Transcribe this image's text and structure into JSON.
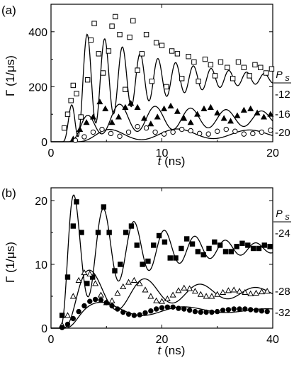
{
  "chart_data": [
    {
      "panel": "(a)",
      "type": "line",
      "xlabel": "t (ns)",
      "xlabel_var": "t",
      "xlabel_unit": " (ns)",
      "ylabel": "Γ (1/μs)",
      "xlim": [
        0,
        20
      ],
      "ylim": [
        0,
        500
      ],
      "xticks": [
        0,
        10,
        20
      ],
      "yticks": [
        0,
        200,
        400
      ],
      "legend_header": "P_S",
      "legend_header_main": "P",
      "legend_header_sub": "S",
      "series": [
        {
          "label": "-12",
          "marker": "open-square",
          "line": {
            "offset": 230,
            "amp0": 250,
            "tau": 7,
            "period": 1.6,
            "t0": 1.0,
            "rise": 1.3,
            "phase": 0.6
          },
          "points": [
            [
              1.2,
              50
            ],
            [
              1.5,
              100
            ],
            [
              1.8,
              150
            ],
            [
              2.0,
              205
            ],
            [
              2.3,
              175
            ],
            [
              2.7,
              90
            ],
            [
              3.3,
              225
            ],
            [
              3.6,
              370
            ],
            [
              3.9,
              430
            ],
            [
              4.3,
              320
            ],
            [
              4.7,
              250
            ],
            [
              5.2,
              330
            ],
            [
              5.5,
              420
            ],
            [
              5.8,
              455
            ],
            [
              6.2,
              390
            ],
            [
              6.7,
              190
            ],
            [
              7.1,
              380
            ],
            [
              7.4,
              440
            ],
            [
              7.8,
              260
            ],
            [
              8.2,
              320
            ],
            [
              8.6,
              390
            ],
            [
              9.1,
              220
            ],
            [
              9.5,
              360
            ],
            [
              10.0,
              350
            ],
            [
              10.4,
              200
            ],
            [
              10.9,
              330
            ],
            [
              11.4,
              320
            ],
            [
              11.8,
              230
            ],
            [
              12.4,
              310
            ],
            [
              12.9,
              290
            ],
            [
              13.3,
              220
            ],
            [
              13.9,
              300
            ],
            [
              14.4,
              280
            ],
            [
              14.8,
              240
            ],
            [
              15.3,
              290
            ],
            [
              15.9,
              270
            ],
            [
              16.4,
              230
            ],
            [
              16.9,
              290
            ],
            [
              17.4,
              270
            ],
            [
              17.9,
              240
            ],
            [
              18.4,
              280
            ],
            [
              18.9,
              270
            ],
            [
              19.4,
              250
            ],
            [
              19.9,
              265
            ]
          ]
        },
        {
          "label": "-16",
          "marker": "filled-triangle",
          "line": {
            "offset": 85,
            "amp0": 65,
            "tau": 20,
            "period": 3.2,
            "t0": 1.5,
            "rise": 1.6,
            "phase": 0.2
          },
          "points": [
            [
              2.0,
              10
            ],
            [
              2.6,
              45
            ],
            [
              3.2,
              70
            ],
            [
              3.8,
              90
            ],
            [
              4.4,
              145
            ],
            [
              4.9,
              120
            ],
            [
              5.5,
              70
            ],
            [
              6.1,
              90
            ],
            [
              6.7,
              125
            ],
            [
              7.2,
              140
            ],
            [
              7.8,
              125
            ],
            [
              8.4,
              85
            ],
            [
              9.0,
              65
            ],
            [
              9.6,
              90
            ],
            [
              10.2,
              120
            ],
            [
              10.8,
              130
            ],
            [
              11.4,
              110
            ],
            [
              12.0,
              85
            ],
            [
              12.6,
              70
            ],
            [
              13.2,
              100
            ],
            [
              13.8,
              120
            ],
            [
              14.4,
              125
            ],
            [
              15.0,
              105
            ],
            [
              15.6,
              85
            ],
            [
              16.2,
              75
            ],
            [
              16.8,
              95
            ],
            [
              17.4,
              115
            ],
            [
              18.0,
              120
            ],
            [
              18.6,
              105
            ],
            [
              19.2,
              90
            ],
            [
              19.8,
              100
            ]
          ]
        },
        {
          "label": "-20",
          "marker": "open-circle",
          "line": {
            "offset": 28,
            "amp0": 25,
            "tau": 30,
            "period": 6.5,
            "t0": 2.2,
            "rise": 2.0,
            "phase": 0.5
          },
          "points": [
            [
              2.2,
              5
            ],
            [
              3.0,
              18
            ],
            [
              3.8,
              35
            ],
            [
              4.6,
              45
            ],
            [
              5.4,
              30
            ],
            [
              6.2,
              20
            ],
            [
              7.0,
              35
            ],
            [
              7.8,
              55
            ],
            [
              8.6,
              50
            ],
            [
              9.4,
              35
            ],
            [
              10.2,
              28
            ],
            [
              11.0,
              35
            ],
            [
              11.8,
              45
            ],
            [
              12.6,
              40
            ],
            [
              13.4,
              30
            ],
            [
              14.2,
              28
            ],
            [
              15.0,
              38
            ],
            [
              15.8,
              45
            ],
            [
              16.6,
              38
            ],
            [
              17.4,
              28
            ],
            [
              18.2,
              30
            ],
            [
              19.0,
              35
            ],
            [
              19.8,
              42
            ]
          ]
        }
      ]
    },
    {
      "panel": "(b)",
      "type": "line",
      "xlabel": "t (ns)",
      "xlabel_var": "t",
      "xlabel_unit": " (ns)",
      "ylabel": "Γ (1/μs)",
      "xlim": [
        0,
        40
      ],
      "ylim": [
        0,
        22
      ],
      "xticks": [
        0,
        20,
        40
      ],
      "yticks": [
        0,
        10,
        20
      ],
      "legend_header": "P_S",
      "legend_header_main": "P",
      "legend_header_sub": "S",
      "series": [
        {
          "label": "-24",
          "marker": "filled-square",
          "line": {
            "offset": 12.5,
            "amp0": 11,
            "tau": 14,
            "period": 5.5,
            "t0": 1.5,
            "rise": 1.4,
            "phase": 0.3
          },
          "points": [
            [
              2,
              2
            ],
            [
              3,
              8
            ],
            [
              4,
              16
            ],
            [
              4.6,
              19.8
            ],
            [
              5.5,
              15
            ],
            [
              6.5,
              7
            ],
            [
              7.5,
              8
            ],
            [
              8.5,
              15
            ],
            [
              9.5,
              19
            ],
            [
              10.5,
              15
            ],
            [
              11.5,
              9
            ],
            [
              12.5,
              10
            ],
            [
              13.5,
              15
            ],
            [
              14.5,
              16
            ],
            [
              15.5,
              13
            ],
            [
              16.5,
              10
            ],
            [
              17.5,
              10.5
            ],
            [
              18.5,
              13
            ],
            [
              19.5,
              14.5
            ],
            [
              20.5,
              13.5
            ],
            [
              21.5,
              11
            ],
            [
              22.5,
              11
            ],
            [
              23.5,
              12.5
            ],
            [
              24.5,
              14
            ],
            [
              25.5,
              13.2
            ],
            [
              26.5,
              12
            ],
            [
              27.5,
              11.5
            ],
            [
              28.5,
              12.5
            ],
            [
              29.5,
              13.5
            ],
            [
              30.5,
              13
            ],
            [
              31.5,
              12
            ],
            [
              32.5,
              12
            ],
            [
              33.5,
              12.8
            ],
            [
              34.5,
              13.3
            ],
            [
              35.5,
              13
            ],
            [
              36.5,
              12.5
            ],
            [
              37.5,
              12.5
            ],
            [
              38.5,
              13
            ],
            [
              39.5,
              12.8
            ]
          ]
        },
        {
          "label": "-28",
          "marker": "open-triangle",
          "line": {
            "offset": 5.6,
            "amp0": 4.5,
            "tau": 20,
            "period": 10.0,
            "t0": 2.0,
            "rise": 2.0,
            "phase": 0.0
          },
          "points": [
            [
              2,
              0.5
            ],
            [
              3,
              2
            ],
            [
              4,
              5
            ],
            [
              5,
              7.5
            ],
            [
              6,
              8.7
            ],
            [
              7,
              8.5
            ],
            [
              8,
              7
            ],
            [
              9,
              5.2
            ],
            [
              10,
              4
            ],
            [
              11,
              4.3
            ],
            [
              12,
              5.5
            ],
            [
              13,
              6.5
            ],
            [
              14,
              7.2
            ],
            [
              15,
              7.5
            ],
            [
              16,
              7
            ],
            [
              17,
              6
            ],
            [
              18,
              5
            ],
            [
              19,
              4.3
            ],
            [
              20,
              4.2
            ],
            [
              21,
              4.6
            ],
            [
              22,
              5.2
            ],
            [
              23,
              5.9
            ],
            [
              24,
              6.3
            ],
            [
              25,
              6.2
            ],
            [
              26,
              5.8
            ],
            [
              27,
              5.3
            ],
            [
              28,
              5
            ],
            [
              29,
              5
            ],
            [
              30,
              5.3
            ],
            [
              31,
              5.6
            ],
            [
              32,
              5.9
            ],
            [
              33,
              6
            ],
            [
              34,
              5.8
            ],
            [
              35,
              5.6
            ],
            [
              36,
              5.4
            ],
            [
              37,
              5.5
            ],
            [
              38,
              5.7
            ],
            [
              39,
              5.8
            ]
          ]
        },
        {
          "label": "-32",
          "marker": "filled-circle",
          "line": {
            "offset": 2.8,
            "amp0": 1.8,
            "tau": 18,
            "period": 15.0,
            "t0": 2.5,
            "rise": 2.2,
            "phase": 0.3
          },
          "points": [
            [
              2,
              0.1
            ],
            [
              3,
              0.6
            ],
            [
              4,
              1.5
            ],
            [
              5,
              2.6
            ],
            [
              6,
              3.5
            ],
            [
              7,
              4.2
            ],
            [
              8,
              4.5
            ],
            [
              9,
              4.4
            ],
            [
              10,
              4
            ],
            [
              11,
              3.5
            ],
            [
              12,
              3
            ],
            [
              13,
              2.5
            ],
            [
              14,
              2.2
            ],
            [
              15,
              2
            ],
            [
              16,
              2.1
            ],
            [
              17,
              2.4
            ],
            [
              18,
              2.7
            ],
            [
              19,
              3
            ],
            [
              20,
              3.2
            ],
            [
              21,
              3.3
            ],
            [
              22,
              3.3
            ],
            [
              23,
              3.1
            ],
            [
              24,
              3
            ],
            [
              25,
              2.8
            ],
            [
              26,
              2.6
            ],
            [
              27,
              2.5
            ],
            [
              28,
              2.5
            ],
            [
              29,
              2.5
            ],
            [
              30,
              2.6
            ],
            [
              31,
              2.8
            ],
            [
              32,
              2.9
            ],
            [
              33,
              3
            ],
            [
              34,
              3
            ],
            [
              35,
              3
            ],
            [
              36,
              2.9
            ],
            [
              37,
              2.8
            ],
            [
              38,
              2.7
            ],
            [
              39,
              2.6
            ]
          ]
        }
      ]
    }
  ]
}
